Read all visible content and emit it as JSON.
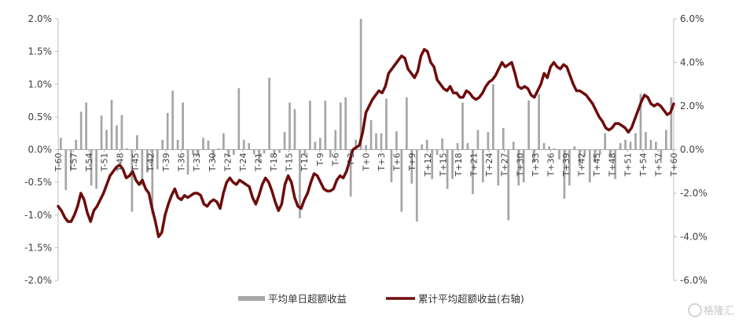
{
  "chart_data": {
    "type": "bar+line",
    "title": "",
    "x_categories_labeled": [
      "T-60",
      "T-57",
      "T-54",
      "T-51",
      "T-48",
      "T-45",
      "T-42",
      "T-39",
      "T-36",
      "T-33",
      "T-30",
      "T-27",
      "T-24",
      "T-21",
      "T-18",
      "T-15",
      "T-12",
      "T-9",
      "T-6",
      "T-3",
      "T+0",
      "T+3",
      "T+6",
      "T+9",
      "T+12",
      "T+15",
      "T+18",
      "T+21",
      "T+24",
      "T+27",
      "T+30",
      "T+33",
      "T+36",
      "T+39",
      "T+42",
      "T+45",
      "T+48",
      "T+51",
      "T+54",
      "T+57",
      "T+60"
    ],
    "x_day_range": [
      -60,
      60
    ],
    "y_left": {
      "min": -2.0,
      "max": 2.0,
      "ticks": [
        "2.0%",
        "1.5%",
        "1.0%",
        "0.5%",
        "0.0%",
        "-0.5%",
        "-1.0%",
        "-1.5%",
        "-2.0%"
      ],
      "tick_values": [
        2.0,
        1.5,
        1.0,
        0.5,
        0.0,
        -0.5,
        -1.0,
        -1.5,
        -2.0
      ]
    },
    "y_right": {
      "min": -6.0,
      "max": 6.0,
      "ticks": [
        "6.0%",
        "4.0%",
        "2.0%",
        "0.0%",
        "-2.0%",
        "-4.0%",
        "-6.0%"
      ],
      "tick_values": [
        6.0,
        4.0,
        2.0,
        0.0,
        -2.0,
        -4.0,
        -6.0
      ]
    },
    "legend_placement": "bottom-center",
    "series": [
      {
        "name": "平均单日超额收益",
        "type": "bar",
        "axis": "left",
        "color": "#a6a6a6",
        "values": [
          0.18,
          -0.62,
          -0.3,
          0.15,
          0.58,
          0.72,
          -0.55,
          -0.6,
          0.52,
          0.3,
          0.76,
          0.37,
          0.53,
          0.02,
          -0.95,
          0.22,
          -0.55,
          -0.35,
          -0.98,
          -0.3,
          0.15,
          0.56,
          0.9,
          0.15,
          0.72,
          -0.38,
          -0.08,
          -0.1,
          0.18,
          0.14,
          -0.15,
          0.02,
          0.25,
          -0.12,
          -0.08,
          0.94,
          0.15,
          0.1,
          -0.07,
          -0.2,
          -0.06,
          1.1,
          -0.08,
          -0.05,
          0.27,
          0.72,
          0.62,
          -1.05,
          -0.08,
          0.75,
          0.12,
          0.18,
          0.75,
          -0.12,
          0.3,
          0.72,
          0.8,
          -0.72,
          0.15,
          2.0,
          0.07,
          0.45,
          0.25,
          0.25,
          0.78,
          -0.5,
          0.28,
          -0.95,
          0.8,
          -0.52,
          -1.1,
          0.08,
          0.15,
          -0.45,
          -0.08,
          0.17,
          -0.6,
          -0.45,
          0.1,
          0.72,
          0.1,
          -0.68,
          0.3,
          -0.5,
          0.27,
          1.0,
          -0.55,
          0.33,
          -1.08,
          0.12,
          -0.55,
          -0.5,
          0.75,
          -0.2,
          0.85,
          0.1,
          0.05,
          0.02,
          -0.15,
          -0.75,
          -0.55,
          0.05,
          -0.25,
          -0.1,
          -0.5,
          -0.2,
          -0.08,
          0.25,
          -0.1,
          -0.45,
          0.1,
          0.15,
          0.12,
          0.25,
          0.85,
          0.27,
          0.15,
          0.12,
          -0.15,
          0.3,
          0.8
        ]
      },
      {
        "name": "累计平均超额收益(右轴)",
        "type": "line",
        "axis": "right",
        "color": "#6e0c0c",
        "values": [
          -2.6,
          -2.8,
          -3.1,
          -3.3,
          -3.3,
          -3.0,
          -2.6,
          -2.0,
          -2.3,
          -2.9,
          -3.3,
          -2.8,
          -2.6,
          -2.3,
          -2.0,
          -1.6,
          -1.2,
          -1.0,
          -0.8,
          -0.7,
          -0.9,
          -1.3,
          -1.2,
          -1.0,
          -1.4,
          -1.6,
          -1.4,
          -1.8,
          -2.0,
          -2.7,
          -3.3,
          -4.0,
          -3.8,
          -3.0,
          -2.5,
          -2.1,
          -1.8,
          -2.2,
          -2.3,
          -2.1,
          -2.2,
          -2.1,
          -2.0,
          -2.0,
          -2.1,
          -2.5,
          -2.6,
          -2.4,
          -2.3,
          -2.4,
          -2.7,
          -2.0,
          -1.5,
          -1.3,
          -1.5,
          -1.6,
          -1.4,
          -1.5,
          -1.6,
          -1.7,
          -2.2,
          -2.5,
          -2.1,
          -1.6,
          -1.3,
          -1.5,
          -1.9,
          -2.4,
          -2.8,
          -2.5,
          -1.6,
          -1.2,
          -1.5,
          -2.2,
          -2.6,
          -2.7,
          -2.3,
          -2.0,
          -1.5,
          -1.1,
          -1.2,
          -1.5,
          -1.8,
          -1.9,
          -1.9,
          -1.8,
          -1.4,
          -1.2,
          -1.3,
          -1.0,
          -0.5,
          0.0,
          0.1,
          0.2,
          0.8,
          1.7,
          2.0,
          2.3,
          2.5,
          2.7,
          2.6,
          2.9,
          3.5,
          3.7,
          3.9,
          4.1,
          4.3,
          4.2,
          3.7,
          3.5,
          3.3,
          3.6,
          4.3,
          4.6,
          4.5,
          4.0,
          3.8,
          3.2,
          3.0,
          2.8,
          2.7,
          2.9,
          2.6,
          2.6,
          2.4,
          2.4,
          2.7,
          2.6,
          2.4,
          2.3,
          2.4,
          2.6,
          2.9,
          3.1,
          3.2,
          3.4,
          3.7,
          4.0,
          3.8,
          3.9,
          4.0,
          3.5,
          2.9,
          2.8,
          2.9,
          2.8,
          2.5,
          2.4,
          2.7,
          3.0,
          3.5,
          3.3,
          3.8,
          4.0,
          3.8,
          3.7,
          3.9,
          3.8,
          3.4,
          3.0,
          2.7,
          2.7,
          2.6,
          2.5,
          2.3,
          2.1,
          1.8,
          1.5,
          1.3,
          1.0,
          0.9,
          1.0,
          1.2,
          1.2,
          1.1,
          1.0,
          0.8,
          1.0,
          1.4,
          1.8,
          2.2,
          2.5,
          2.4,
          2.1,
          2.0,
          2.1,
          2.0,
          1.8,
          1.6,
          1.7,
          2.1
        ]
      }
    ]
  },
  "watermark": {
    "text": "格隆汇"
  }
}
